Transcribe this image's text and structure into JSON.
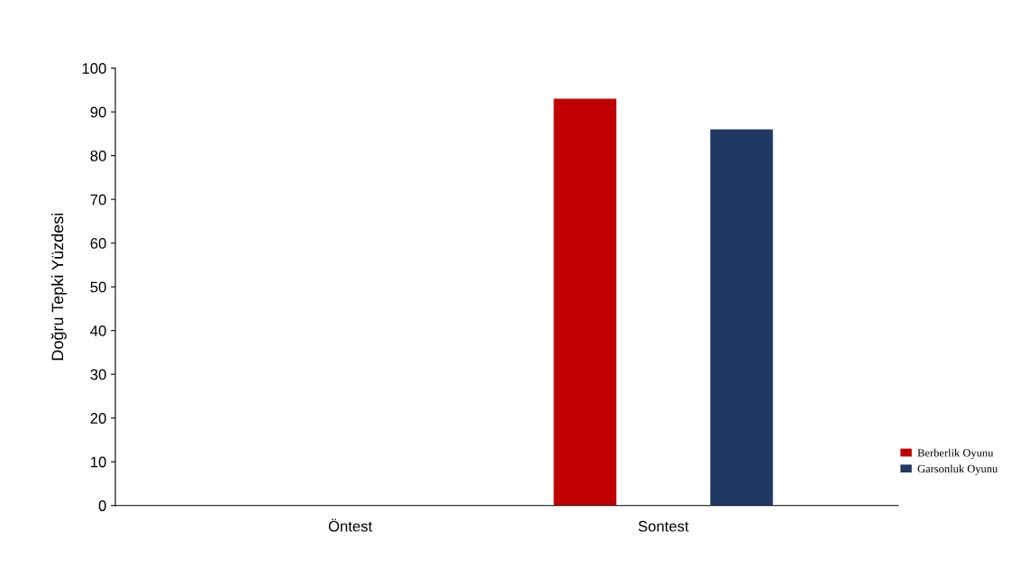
{
  "chart_data": {
    "type": "bar",
    "ylabel": "Doğru Tepki Yüzdesi",
    "categories": [
      "Öntest",
      "Sontest"
    ],
    "series": [
      {
        "name": "Berberlik Oyunu",
        "color": "#c00000",
        "values": [
          0,
          93
        ]
      },
      {
        "name": "Garsonluk Oyunu",
        "color": "#1f3864",
        "values": [
          0,
          86
        ]
      }
    ],
    "ylim": [
      0,
      100
    ],
    "yticks": [
      0,
      10,
      20,
      30,
      40,
      50,
      60,
      70,
      80,
      90,
      100
    ],
    "grid": false,
    "legend": "right"
  }
}
